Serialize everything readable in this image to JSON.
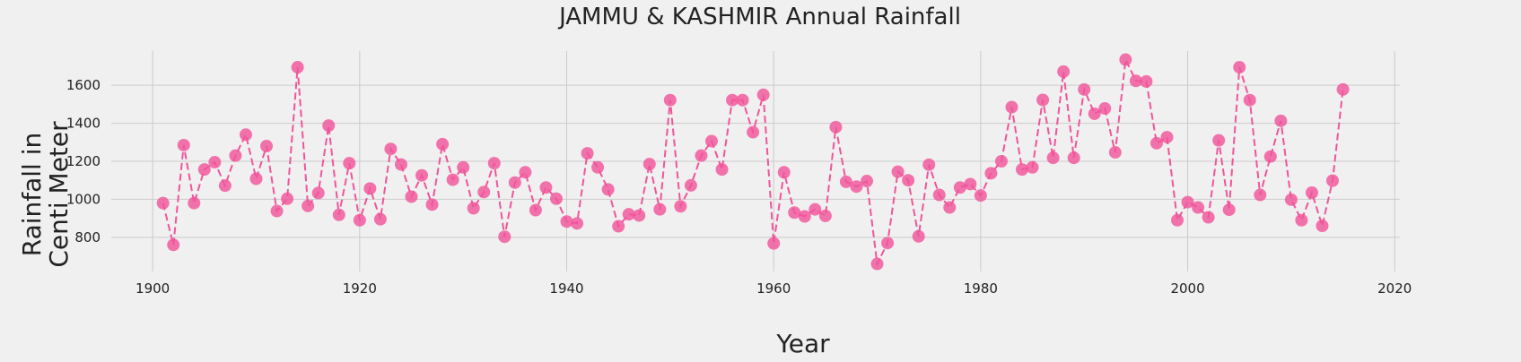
{
  "chart_data": {
    "type": "line",
    "title": "JAMMU & KASHMIR Annual Rainfall",
    "xlabel": "Year",
    "ylabel_lines": [
      "Rainfall in",
      "Centi Meter"
    ],
    "xlim": [
      1896,
      2020.5
    ],
    "ylim": [
      620,
      1780
    ],
    "xticks": [
      1900,
      1920,
      1940,
      1960,
      1980,
      2000,
      2020
    ],
    "yticks": [
      800,
      1000,
      1200,
      1400,
      1600
    ],
    "grid": true,
    "line_style": "dashed",
    "marker": "circle",
    "color": "#f0559b",
    "x": [
      1901,
      1902,
      1903,
      1904,
      1905,
      1906,
      1907,
      1908,
      1909,
      1910,
      1911,
      1912,
      1913,
      1914,
      1915,
      1916,
      1917,
      1918,
      1919,
      1920,
      1921,
      1922,
      1923,
      1924,
      1925,
      1926,
      1927,
      1928,
      1929,
      1930,
      1931,
      1932,
      1933,
      1934,
      1935,
      1936,
      1937,
      1938,
      1939,
      1940,
      1941,
      1942,
      1943,
      1944,
      1945,
      1946,
      1947,
      1948,
      1949,
      1950,
      1951,
      1952,
      1953,
      1954,
      1955,
      1956,
      1957,
      1958,
      1959,
      1960,
      1961,
      1962,
      1963,
      1964,
      1965,
      1966,
      1967,
      1968,
      1969,
      1970,
      1971,
      1972,
      1973,
      1974,
      1975,
      1976,
      1977,
      1978,
      1979,
      1980,
      1981,
      1982,
      1983,
      1984,
      1985,
      1986,
      1987,
      1988,
      1989,
      1990,
      1991,
      1992,
      1993,
      1994,
      1995,
      1996,
      1997,
      1998,
      1999,
      2000,
      2001,
      2002,
      2003,
      2004,
      2005,
      2006,
      2007,
      2008,
      2009,
      2010,
      2011,
      2012,
      2013,
      2014,
      2015
    ],
    "values": [
      980,
      760,
      1285,
      980,
      1157,
      1195,
      1072,
      1230,
      1340,
      1108,
      1280,
      938,
      1003,
      1695,
      965,
      1033,
      1388,
      918,
      1190,
      890,
      1057,
      895,
      1265,
      1183,
      1014,
      1126,
      972,
      1290,
      1103,
      1168,
      953,
      1038,
      1190,
      803,
      1088,
      1142,
      943,
      1062,
      1003,
      883,
      873,
      1242,
      1168,
      1052,
      858,
      921,
      915,
      1185,
      947,
      1522,
      963,
      1073,
      1230,
      1306,
      1157,
      1522,
      1522,
      1353,
      1550,
      768,
      1142,
      930,
      910,
      947,
      913,
      1380,
      1092,
      1067,
      1096,
      660,
      770,
      1145,
      1100,
      805,
      1182,
      1023,
      957,
      1062,
      1080,
      1020,
      1137,
      1200,
      1485,
      1157,
      1168,
      1523,
      1218,
      1672,
      1218,
      1578,
      1450,
      1478,
      1247,
      1735,
      1623,
      1620,
      1295,
      1327,
      890,
      985,
      957,
      905,
      1310,
      945,
      1695,
      1522,
      1023,
      1225,
      1413,
      998,
      890,
      1035,
      860,
      1098,
      1578
    ]
  }
}
